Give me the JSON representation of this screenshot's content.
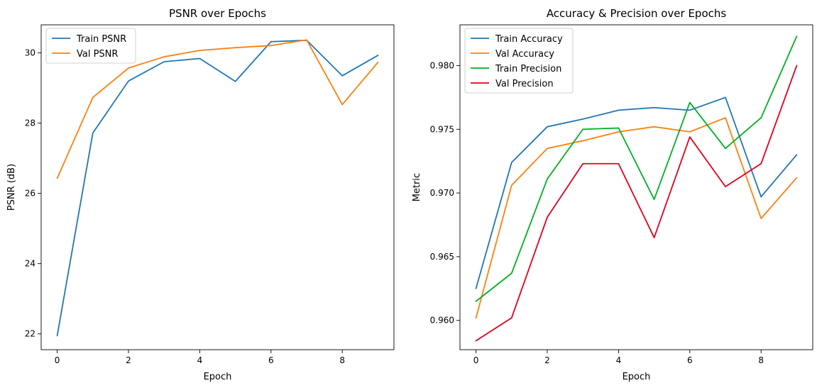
{
  "chart_data": [
    {
      "type": "line",
      "title": "PSNR over Epochs",
      "xlabel": "Epoch",
      "ylabel": "PSNR (dB)",
      "x": [
        0,
        1,
        2,
        3,
        4,
        5,
        6,
        7,
        8,
        9
      ],
      "xlim": [
        -0.45,
        9.45
      ],
      "ylim": [
        21.55,
        30.8
      ],
      "xticks": [
        0,
        2,
        4,
        6,
        8
      ],
      "yticks": [
        22,
        24,
        26,
        28,
        30
      ],
      "ytick_labels": [
        "22",
        "24",
        "26",
        "28",
        "30"
      ],
      "grid": false,
      "legend": "top-left",
      "series": [
        {
          "name": "Train PSNR",
          "color": "#1f77b4",
          "values": [
            21.95,
            27.72,
            29.2,
            29.75,
            29.84,
            29.19,
            30.32,
            30.36,
            29.35,
            29.93
          ]
        },
        {
          "name": "Val PSNR",
          "color": "#ff7f0e",
          "values": [
            26.43,
            28.73,
            29.57,
            29.89,
            30.07,
            30.15,
            30.21,
            30.37,
            28.53,
            29.73
          ]
        }
      ]
    },
    {
      "type": "line",
      "title": "Accuracy & Precision over Epochs",
      "xlabel": "Epoch",
      "ylabel": "Metric",
      "x": [
        0,
        1,
        2,
        3,
        4,
        5,
        6,
        7,
        8,
        9
      ],
      "xlim": [
        -0.45,
        9.45
      ],
      "ylim": [
        0.9577,
        0.9832
      ],
      "xticks": [
        0,
        2,
        4,
        6,
        8
      ],
      "yticks": [
        0.96,
        0.965,
        0.97,
        0.975,
        0.98
      ],
      "ytick_labels": [
        "0.960",
        "0.965",
        "0.970",
        "0.975",
        "0.980"
      ],
      "grid": false,
      "legend": "top-left",
      "series": [
        {
          "name": "Train Accuracy",
          "color": "#1f77b4",
          "values": [
            0.9625,
            0.9724,
            0.9752,
            0.9758,
            0.9765,
            0.9767,
            0.9765,
            0.9775,
            0.9697,
            0.973
          ]
        },
        {
          "name": "Val Accuracy",
          "color": "#ff7f0e",
          "values": [
            0.9602,
            0.9706,
            0.9735,
            0.9741,
            0.9748,
            0.9752,
            0.9748,
            0.9759,
            0.968,
            0.9712
          ]
        },
        {
          "name": "Train Precision",
          "color": "#00b020",
          "values": [
            0.9615,
            0.9637,
            0.9711,
            0.975,
            0.9751,
            0.9695,
            0.9771,
            0.9735,
            0.9759,
            0.9823
          ]
        },
        {
          "name": "Val Precision",
          "color": "#e0001b",
          "values": [
            0.9584,
            0.9602,
            0.9681,
            0.9723,
            0.9723,
            0.9665,
            0.9744,
            0.9705,
            0.9723,
            0.98
          ]
        }
      ]
    }
  ]
}
